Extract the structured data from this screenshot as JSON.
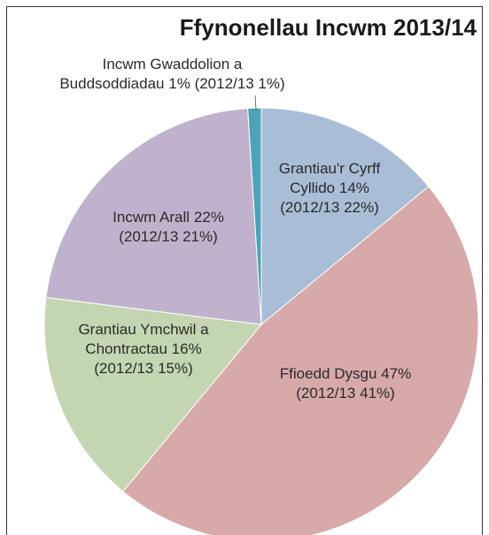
{
  "chart_data": {
    "type": "pie",
    "title": "Ffynonellau Incwm 2013/14",
    "categories": [
      "Grantiau'r Cyrff Cyllido",
      "Ffioedd Dysgu",
      "Grantiau Ymchwil a Chontractau",
      "Incwm Arall",
      "Incwm Gwaddolion a Buddsoddiadau"
    ],
    "values": [
      14,
      47,
      16,
      22,
      1
    ],
    "value_labels": [
      "14%",
      "47%",
      "16%",
      "22%",
      "1%"
    ],
    "prior_labels": [
      "(2012/13 22%)",
      "(2012/13 41%)",
      "(2012/13 15%)",
      "(2012/13 21%)",
      "(2012/13 1%)"
    ],
    "colors": [
      "#aabdd7",
      "#d8a9a9",
      "#c4d6b1",
      "#c0b2cc",
      "#4ea2b6"
    ]
  }
}
